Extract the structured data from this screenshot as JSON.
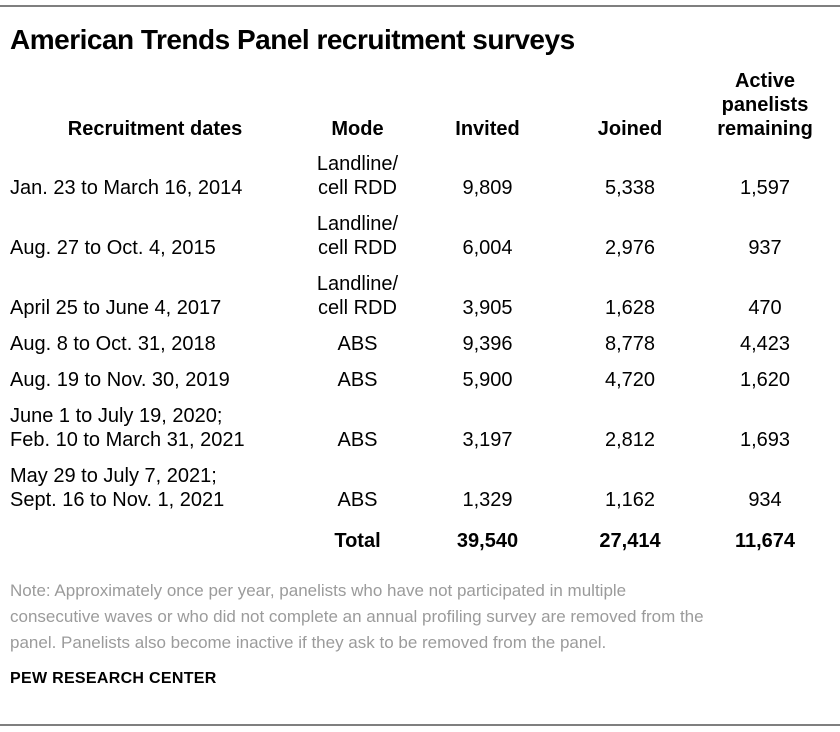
{
  "page": {
    "title": "American Trends Panel recruitment surveys",
    "note": "Note: Approximately once per year, panelists who have not participated in multiple\nconsecutive waves or who did not complete an annual profiling survey are removed from the\npanel. Panelists also become inactive if they ask to be removed from the panel.",
    "source": "PEW RESEARCH CENTER"
  },
  "colors": {
    "text": "#000000",
    "note_gray": "#9b9b9b",
    "rule_gray": "#7f7f7f",
    "background": "#ffffff"
  },
  "table": {
    "headers": {
      "dates": "Recruitment dates",
      "mode": "Mode",
      "invited": "Invited",
      "joined": "Joined",
      "active": "Active\npanelists\nremaining"
    },
    "rows": [
      {
        "dates": "Jan. 23 to March 16, 2014",
        "mode": "Landline/\ncell RDD",
        "invited": "9,809",
        "joined": "5,338",
        "active": "1,597"
      },
      {
        "dates": "Aug. 27 to Oct. 4, 2015",
        "mode": "Landline/\ncell RDD",
        "invited": "6,004",
        "joined": "2,976",
        "active": "937"
      },
      {
        "dates": "April 25 to June 4, 2017",
        "mode": "Landline/\ncell RDD",
        "invited": "3,905",
        "joined": "1,628",
        "active": "470"
      },
      {
        "dates": "Aug. 8 to Oct. 31, 2018",
        "mode": "ABS",
        "invited": "9,396",
        "joined": "8,778",
        "active": "4,423"
      },
      {
        "dates": "Aug. 19 to Nov. 30, 2019",
        "mode": "ABS",
        "invited": "5,900",
        "joined": "4,720",
        "active": "1,620"
      },
      {
        "dates": "June 1 to July 19, 2020;\nFeb. 10 to March 31, 2021",
        "mode": "ABS",
        "invited": "3,197",
        "joined": "2,812",
        "active": "1,693"
      },
      {
        "dates": "May 29 to July 7, 2021;\nSept. 16 to Nov. 1, 2021",
        "mode": "ABS",
        "invited": "1,329",
        "joined": "1,162",
        "active": "934"
      }
    ],
    "total": {
      "label": "Total",
      "invited": "39,540",
      "joined": "27,414",
      "active": "11,674"
    }
  },
  "chart_data": {
    "type": "table",
    "title": "American Trends Panel recruitment surveys",
    "columns": [
      "Recruitment dates",
      "Mode",
      "Invited",
      "Joined",
      "Active panelists remaining"
    ],
    "rows": [
      [
        "Jan. 23 to March 16, 2014",
        "Landline/cell RDD",
        9809,
        5338,
        1597
      ],
      [
        "Aug. 27 to Oct. 4, 2015",
        "Landline/cell RDD",
        6004,
        2976,
        937
      ],
      [
        "April 25 to June 4, 2017",
        "Landline/cell RDD",
        3905,
        1628,
        470
      ],
      [
        "Aug. 8 to Oct. 31, 2018",
        "ABS",
        9396,
        8778,
        4423
      ],
      [
        "Aug. 19 to Nov. 30, 2019",
        "ABS",
        5900,
        4720,
        1620
      ],
      [
        "June 1 to July 19, 2020; Feb. 10 to March 31, 2021",
        "ABS",
        3197,
        2812,
        1693
      ],
      [
        "May 29 to July 7, 2021; Sept. 16 to Nov. 1, 2021",
        "ABS",
        1329,
        1162,
        934
      ]
    ],
    "total_row": [
      "Total",
      "",
      39540,
      27414,
      11674
    ],
    "note": "Note: Approximately once per year, panelists who have not participated in multiple consecutive waves or who did not complete an annual profiling survey are removed from the panel. Panelists also become inactive if they ask to be removed from the panel.",
    "source": "PEW RESEARCH CENTER"
  }
}
